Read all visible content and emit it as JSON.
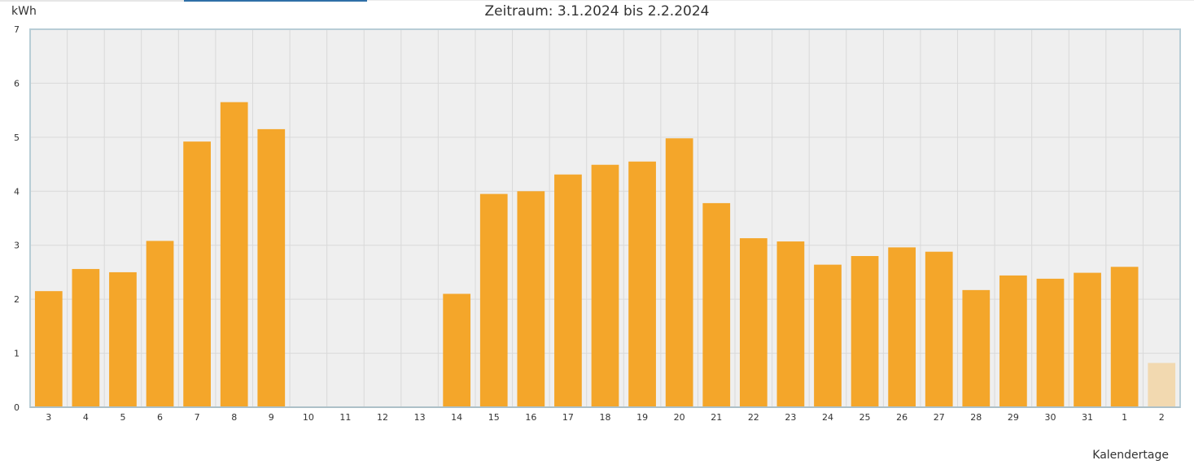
{
  "chart_data": {
    "type": "bar",
    "title": "Zeitraum: 3.1.2024 bis 2.2.2024",
    "ylabel": "kWh",
    "xlabel": "Kalendertage",
    "ylim": [
      0,
      7
    ],
    "yticks": [
      0,
      1,
      2,
      3,
      4,
      5,
      6,
      7
    ],
    "grid": true,
    "categories": [
      "3",
      "4",
      "5",
      "6",
      "7",
      "8",
      "9",
      "10",
      "11",
      "12",
      "13",
      "14",
      "15",
      "16",
      "17",
      "18",
      "19",
      "20",
      "21",
      "22",
      "23",
      "24",
      "25",
      "26",
      "27",
      "28",
      "29",
      "30",
      "31",
      "1",
      "2"
    ],
    "values": [
      2.15,
      2.56,
      2.5,
      3.08,
      4.92,
      5.65,
      5.15,
      0,
      0,
      0,
      0,
      2.1,
      3.95,
      4.0,
      4.31,
      4.49,
      4.55,
      4.98,
      3.78,
      3.13,
      3.07,
      2.64,
      2.8,
      2.96,
      2.88,
      2.17,
      2.44,
      2.38,
      2.49,
      2.6,
      0.82
    ],
    "colors": {
      "bar": "#f4a62a",
      "bar_current": "#f2d9b0",
      "plot_bg": "#efefef",
      "grid": "#d9d9d9",
      "axis": "#b8cdd6"
    }
  }
}
